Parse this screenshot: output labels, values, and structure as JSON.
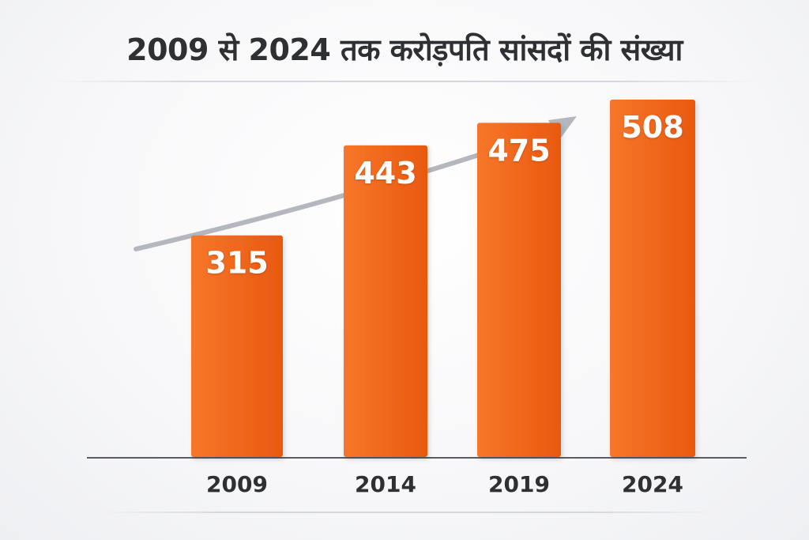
{
  "chart_data": {
    "type": "bar",
    "title": "2009 से 2024 तक करोड़पति सांसदों की संख्या",
    "categories": [
      "2009",
      "2014",
      "2019",
      "2024"
    ],
    "values": [
      315,
      443,
      475,
      508
    ],
    "data_labels": [
      "315",
      "443",
      "475",
      "508"
    ],
    "xlabel": "",
    "ylabel": "",
    "ylim": [
      0,
      550
    ],
    "grid": false,
    "legend": "none",
    "annotations": [
      "upward trend arrow"
    ],
    "colors": {
      "bar": "#f26a1b",
      "bar_dark": "#e85d12",
      "arrow": "#b4b7bd",
      "text": "#2f3033"
    }
  }
}
